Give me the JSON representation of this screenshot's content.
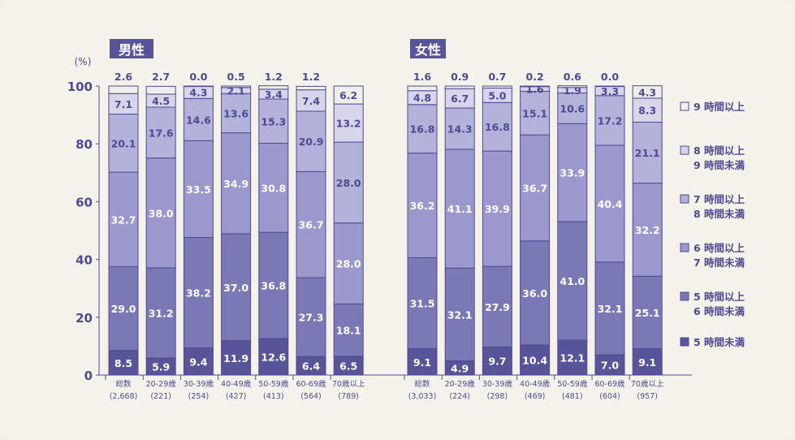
{
  "chart_data": {
    "type": "bar",
    "stacked": true,
    "yunit": "(%)",
    "ylim": [
      0,
      100
    ],
    "yticks": [
      0,
      20,
      40,
      60,
      80,
      100
    ],
    "legend_placement": "right",
    "series_names": [
      [
        "5 時間未満"
      ],
      [
        "5 時間以上",
        "6 時間未満"
      ],
      [
        "6 時間以上",
        "7 時間未満"
      ],
      [
        "7 時間以上",
        "8 時間未満"
      ],
      [
        "8 時間以上",
        "9 時間未満"
      ],
      [
        "9 時間以上"
      ]
    ],
    "colors": [
      "#57549a",
      "#7b78b6",
      "#9a98cc",
      "#b3b2da",
      "#d6d5ea",
      "#efeeea"
    ],
    "groups": [
      {
        "title": "男性",
        "categories": [
          [
            "総数",
            "(2,668)"
          ],
          [
            "20-29歳",
            "(221)"
          ],
          [
            "30-39歳",
            "(254)"
          ],
          [
            "40-49歳",
            "(427)"
          ],
          [
            "50-59歳",
            "(413)"
          ],
          [
            "60-69歳",
            "(564)"
          ],
          [
            "70歳以上",
            "(789)"
          ]
        ],
        "values": [
          [
            8.5,
            29.0,
            32.7,
            20.1,
            7.1,
            2.6
          ],
          [
            5.9,
            31.2,
            38.0,
            17.6,
            4.5,
            2.7
          ],
          [
            9.4,
            38.2,
            33.5,
            14.6,
            4.3,
            0.0
          ],
          [
            11.9,
            37.0,
            34.9,
            13.6,
            2.1,
            0.5
          ],
          [
            12.6,
            36.8,
            30.8,
            15.3,
            3.4,
            1.2
          ],
          [
            6.4,
            27.3,
            36.7,
            20.9,
            7.4,
            1.2
          ],
          [
            6.5,
            18.1,
            28.0,
            28.0,
            13.2,
            6.2
          ]
        ]
      },
      {
        "title": "女性",
        "categories": [
          [
            "総数",
            "(3,033)"
          ],
          [
            "20-29歳",
            "(224)"
          ],
          [
            "30-39歳",
            "(298)"
          ],
          [
            "40-49歳",
            "(469)"
          ],
          [
            "50-59歳",
            "(481)"
          ],
          [
            "60-69歳",
            "(604)"
          ],
          [
            "70歳以上",
            "(957)"
          ]
        ],
        "values": [
          [
            9.1,
            31.5,
            36.2,
            16.8,
            4.8,
            1.6
          ],
          [
            4.9,
            32.1,
            41.1,
            14.3,
            6.7,
            0.9
          ],
          [
            9.7,
            27.9,
            39.9,
            16.8,
            5.0,
            0.7
          ],
          [
            10.4,
            36.0,
            36.7,
            15.1,
            1.6,
            0.2
          ],
          [
            12.1,
            41.0,
            33.9,
            10.6,
            1.9,
            0.6
          ],
          [
            7.0,
            32.1,
            40.4,
            17.2,
            3.3,
            0.0
          ],
          [
            9.1,
            25.1,
            32.2,
            21.1,
            8.3,
            4.3
          ]
        ]
      }
    ]
  }
}
